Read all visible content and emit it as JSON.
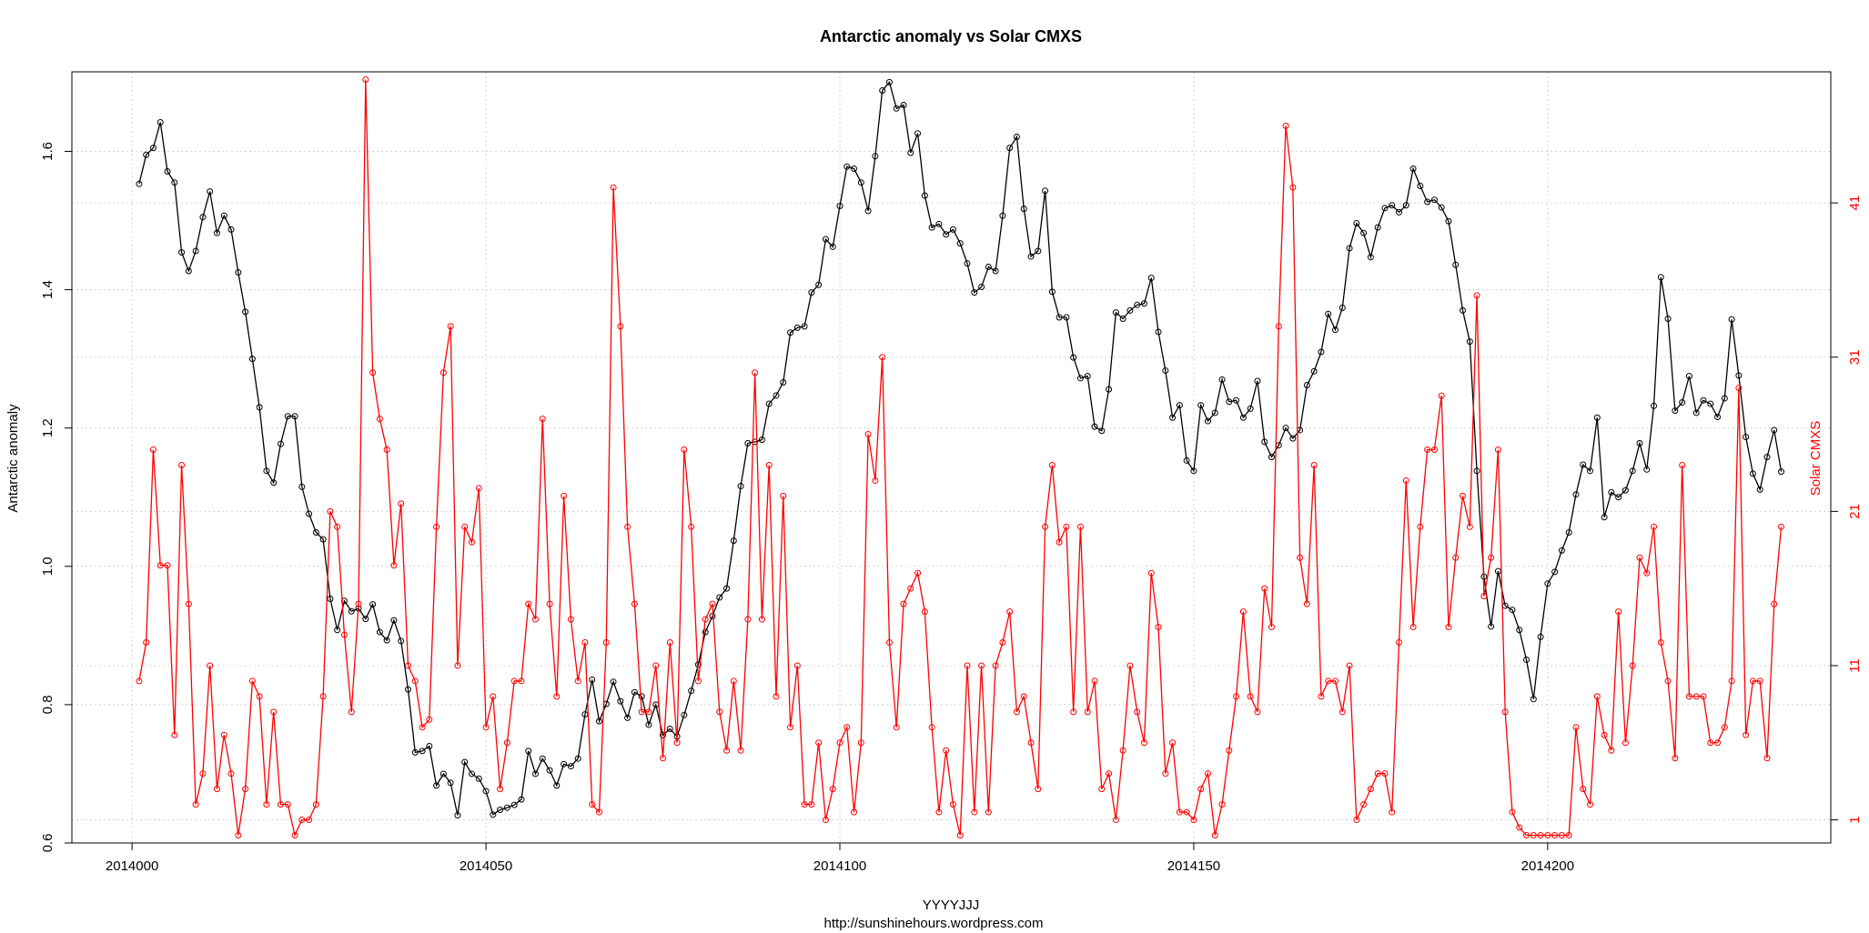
{
  "chart_data": {
    "type": "line",
    "title": "Antarctic anomaly  vs  Solar CMXS",
    "xlabel": "YYYYJJJ",
    "caption": "http://sunshinehours.wordpress.com",
    "ylabel_left": "Antarctic anomaly",
    "ylabel_right": "Solar CMXS",
    "x_ticks": [
      "2014000",
      "2014050",
      "2014100",
      "2014150",
      "2014200"
    ],
    "x_tick_values": [
      2014000,
      2014050,
      2014100,
      2014150,
      2014200
    ],
    "y_ticks_left": [
      "0.6",
      "0.8",
      "1.0",
      "1.2",
      "1.4",
      "1.6"
    ],
    "y_tick_values_left": [
      0.6,
      0.8,
      1.0,
      1.2,
      1.4,
      1.6
    ],
    "y_ticks_right": [
      "1",
      "11",
      "21",
      "31",
      "41"
    ],
    "y_tick_values_right": [
      1,
      11,
      21,
      31,
      41
    ],
    "xlim": [
      2013991.5,
      2014240
    ],
    "ylim_left": [
      0.6,
      1.715
    ],
    "ylim_right": [
      -0.5,
      49.5
    ],
    "grid": true,
    "colors": {
      "series_left": "#000000",
      "series_right": "#ff0000",
      "grid": "#d3d3d3"
    },
    "x_start": 2014001,
    "series": [
      {
        "name": "Antarctic anomaly",
        "axis": "left",
        "color": "#000000",
        "values": [
          1.553,
          1.595,
          1.605,
          1.642,
          1.571,
          1.555,
          1.454,
          1.427,
          1.456,
          1.505,
          1.542,
          1.482,
          1.507,
          1.487,
          1.425,
          1.368,
          1.3,
          1.23,
          1.138,
          1.121,
          1.177,
          1.217,
          1.217,
          1.115,
          1.076,
          1.049,
          1.039,
          0.953,
          0.908,
          0.95,
          0.935,
          0.939,
          0.924,
          0.945,
          0.905,
          0.893,
          0.922,
          0.892,
          0.822,
          0.731,
          0.733,
          0.74,
          0.683,
          0.7,
          0.687,
          0.64,
          0.717,
          0.7,
          0.693,
          0.675,
          0.641,
          0.648,
          0.651,
          0.655,
          0.663,
          0.733,
          0.7,
          0.722,
          0.705,
          0.683,
          0.714,
          0.711,
          0.722,
          0.786,
          0.836,
          0.776,
          0.801,
          0.833,
          0.805,
          0.781,
          0.818,
          0.812,
          0.771,
          0.8,
          0.756,
          0.765,
          0.754,
          0.785,
          0.82,
          0.858,
          0.905,
          0.928,
          0.955,
          0.968,
          1.037,
          1.116,
          1.178,
          1.18,
          1.183,
          1.235,
          1.247,
          1.266,
          1.338,
          1.345,
          1.347,
          1.396,
          1.407,
          1.473,
          1.462,
          1.521,
          1.578,
          1.575,
          1.555,
          1.514,
          1.593,
          1.688,
          1.7,
          1.662,
          1.667,
          1.598,
          1.626,
          1.536,
          1.49,
          1.495,
          1.48,
          1.487,
          1.467,
          1.438,
          1.396,
          1.404,
          1.433,
          1.427,
          1.507,
          1.605,
          1.621,
          1.517,
          1.448,
          1.456,
          1.543,
          1.397,
          1.36,
          1.36,
          1.302,
          1.272,
          1.275,
          1.202,
          1.196,
          1.256,
          1.367,
          1.358,
          1.37,
          1.378,
          1.38,
          1.417,
          1.339,
          1.283,
          1.215,
          1.233,
          1.153,
          1.138,
          1.233,
          1.21,
          1.222,
          1.27,
          1.238,
          1.24,
          1.215,
          1.228,
          1.268,
          1.18,
          1.158,
          1.175,
          1.2,
          1.185,
          1.197,
          1.262,
          1.282,
          1.31,
          1.365,
          1.342,
          1.374,
          1.46,
          1.496,
          1.482,
          1.447,
          1.49,
          1.518,
          1.522,
          1.512,
          1.522,
          1.575,
          1.55,
          1.527,
          1.53,
          1.519,
          1.499,
          1.436,
          1.37,
          1.325,
          1.138,
          0.985,
          0.913,
          0.993,
          0.943,
          0.937,
          0.908,
          0.865,
          0.808,
          0.898,
          0.975,
          0.992,
          1.023,
          1.049,
          1.104,
          1.147,
          1.138,
          1.215,
          1.071,
          1.107,
          1.1,
          1.11,
          1.138,
          1.178,
          1.14,
          1.232,
          1.418,
          1.358,
          1.225,
          1.237,
          1.275,
          1.222,
          1.24,
          1.235,
          1.216,
          1.243,
          1.357,
          1.276,
          1.187,
          1.134,
          1.111,
          1.158,
          1.197,
          1.137
        ]
      },
      {
        "name": "Solar CMXS",
        "axis": "right",
        "color": "#ff0000",
        "values": [
          10.0,
          12.5,
          25.0,
          17.5,
          17.5,
          6.5,
          24.0,
          15.0,
          2.0,
          4.0,
          11.0,
          3.0,
          6.5,
          4.0,
          0.0,
          3.0,
          10.0,
          9.0,
          2.0,
          8.0,
          2.0,
          2.0,
          0.0,
          1.0,
          1.0,
          2.0,
          9.0,
          21.0,
          20.0,
          13.0,
          8.0,
          15.0,
          49.0,
          30.0,
          27.0,
          25.0,
          17.5,
          21.5,
          11.0,
          10.0,
          7.0,
          7.5,
          20.0,
          30.0,
          33.0,
          11.0,
          20.0,
          19.0,
          22.5,
          7.0,
          9.0,
          3.0,
          6.0,
          10.0,
          10.0,
          15.0,
          14.0,
          27.0,
          15.0,
          9.0,
          22.0,
          14.0,
          10.0,
          12.5,
          2.0,
          1.5,
          12.5,
          42.0,
          33.0,
          20.0,
          15.0,
          8.0,
          8.0,
          11.0,
          5.0,
          12.5,
          6.0,
          25.0,
          20.0,
          10.0,
          14.0,
          15.0,
          8.0,
          5.5,
          10.0,
          5.5,
          14.0,
          30.0,
          14.0,
          24.0,
          9.0,
          22.0,
          7.0,
          11.0,
          2.0,
          2.0,
          6.0,
          1.0,
          3.0,
          6.0,
          7.0,
          1.5,
          6.0,
          26.0,
          23.0,
          31.0,
          12.5,
          7.0,
          15.0,
          16.0,
          17.0,
          14.5,
          7.0,
          1.5,
          5.5,
          2.0,
          0.0,
          11.0,
          1.5,
          11.0,
          1.5,
          11.0,
          12.5,
          14.5,
          8.0,
          9.0,
          6.0,
          3.0,
          20.0,
          24.0,
          19.0,
          20.0,
          8.0,
          20.0,
          8.0,
          10.0,
          3.0,
          4.0,
          1.0,
          5.5,
          11.0,
          8.0,
          6.0,
          17.0,
          13.5,
          4.0,
          6.0,
          1.5,
          1.5,
          1.0,
          3.0,
          4.0,
          0.0,
          2.0,
          5.5,
          9.0,
          14.5,
          9.0,
          8.0,
          16.0,
          13.5,
          33.0,
          46.0,
          42.0,
          18.0,
          15.0,
          24.0,
          9.0,
          10.0,
          10.0,
          8.0,
          11.0,
          1.0,
          2.0,
          3.0,
          4.0,
          4.0,
          1.5,
          12.5,
          23.0,
          13.5,
          20.0,
          25.0,
          25.0,
          28.5,
          13.5,
          18.0,
          22.0,
          20.0,
          35.0,
          15.5,
          18.0,
          25.0,
          8.0,
          1.5,
          0.5,
          0.0,
          0.0,
          0.0,
          0.0,
          0.0,
          0.0,
          0.0,
          7.0,
          3.0,
          2.0,
          9.0,
          6.5,
          5.5,
          14.5,
          6.0,
          11.0,
          18.0,
          17.0,
          20.0,
          12.5,
          10.0,
          5.0,
          24.0,
          9.0,
          9.0,
          9.0,
          6.0,
          6.0,
          7.0,
          10.0,
          29.0,
          6.5,
          10.0,
          10.0,
          5.0,
          15.0,
          20.0
        ]
      }
    ]
  }
}
